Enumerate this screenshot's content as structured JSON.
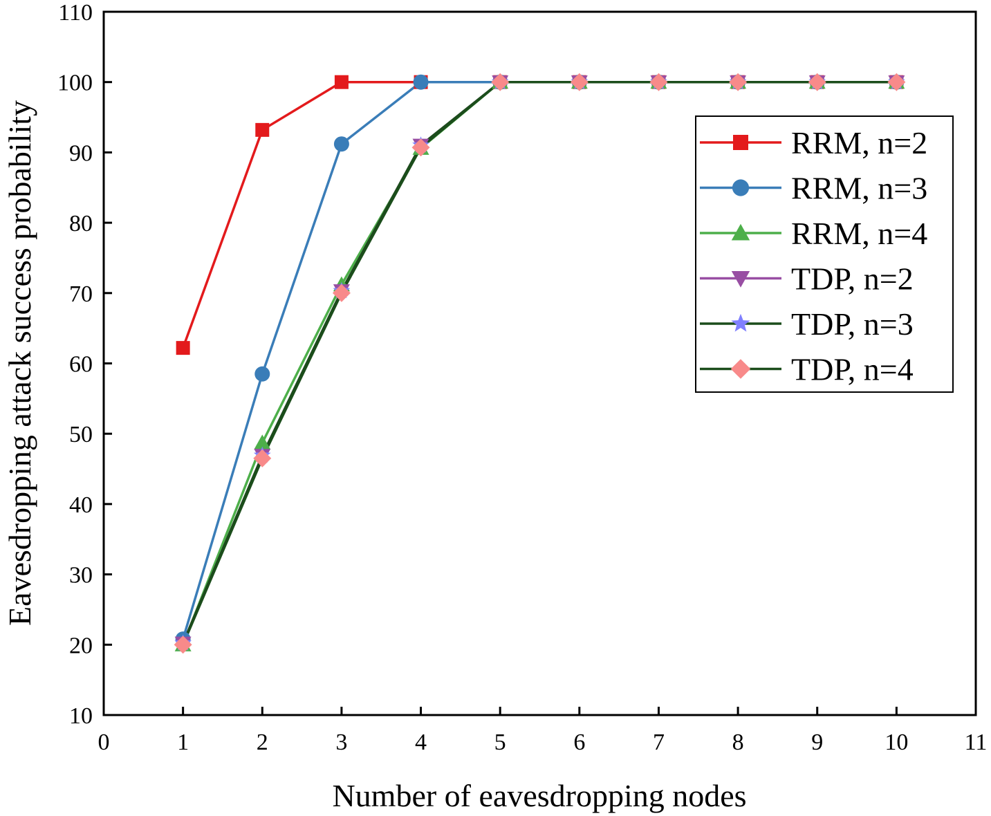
{
  "chart_data": {
    "type": "line",
    "title": "",
    "xlabel": "Number of eavesdropping nodes",
    "ylabel": "Eavesdropping attack success probability",
    "xlim": [
      0,
      11
    ],
    "ylim": [
      10,
      110
    ],
    "xticks": [
      "0",
      "1",
      "2",
      "3",
      "4",
      "5",
      "6",
      "7",
      "8",
      "9",
      "10",
      "11"
    ],
    "yticks": [
      "10",
      "20",
      "30",
      "40",
      "50",
      "60",
      "70",
      "80",
      "90",
      "100",
      "110"
    ],
    "x": [
      1,
      2,
      3,
      4,
      5,
      6,
      7,
      8,
      9,
      10
    ],
    "legend_position": "top-right",
    "series": [
      {
        "name": "RRM, n=2",
        "color": "#e31a1c",
        "marker": "square",
        "values": [
          62.2,
          93.2,
          100,
          100,
          100,
          100,
          100,
          100,
          100,
          100
        ]
      },
      {
        "name": "RRM, n=3",
        "color": "#3a7db8",
        "marker": "circle",
        "values": [
          20.8,
          58.5,
          91.2,
          100,
          100,
          100,
          100,
          100,
          100,
          100
        ]
      },
      {
        "name": "RRM, n=4",
        "color": "#4daf4a",
        "marker": "triangle-up",
        "values": [
          20.0,
          48.7,
          71.2,
          90.6,
          100,
          100,
          100,
          100,
          100,
          100
        ]
      },
      {
        "name": "TDP, n=2",
        "color": "#984ea3",
        "marker": "triangle-down",
        "values": [
          20.2,
          46.9,
          70.3,
          91.0,
          100,
          100,
          100,
          100,
          100,
          100
        ]
      },
      {
        "name": "TDP, n=3",
        "color": "#8080ff",
        "line_color": "#1b4d1b",
        "marker": "star",
        "values": [
          20.2,
          46.9,
          70.3,
          91.0,
          100,
          100,
          100,
          100,
          100,
          100
        ]
      },
      {
        "name": "TDP, n=4",
        "color": "#f88a8a",
        "line_color": "#1b4d1b",
        "marker": "diamond",
        "values": [
          20.0,
          46.5,
          70.0,
          90.7,
          100,
          100,
          100,
          100,
          100,
          100
        ]
      }
    ]
  }
}
